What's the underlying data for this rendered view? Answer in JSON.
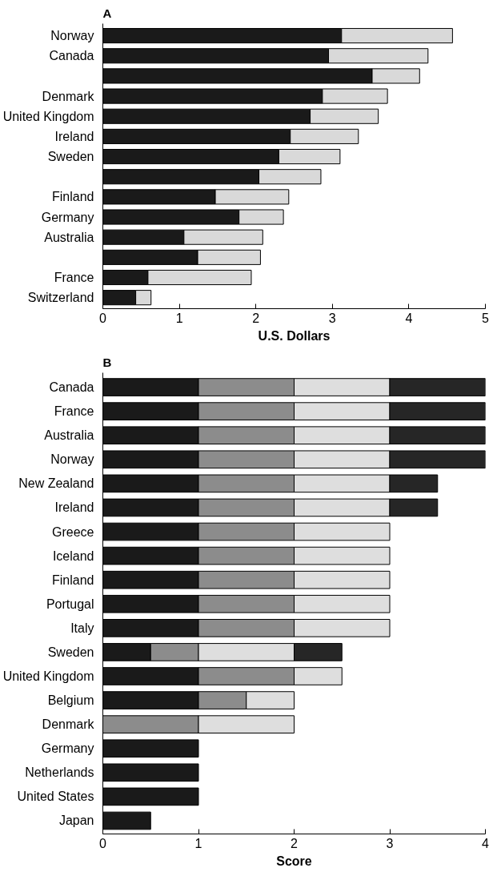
{
  "chart_data": [
    {
      "type": "bar",
      "title": "A",
      "xlabel": "U.S. Dollars",
      "orientation": "horizontal",
      "stacked": true,
      "categories": [
        "Norway",
        "Canada",
        null,
        "Denmark",
        "United Kingdom",
        "Ireland",
        "Sweden",
        null,
        "Finland",
        "Germany",
        "Australia",
        null,
        "France",
        "Switzerland"
      ],
      "series": [
        {
          "color": "#1a1a1a",
          "values": [
            3.12,
            2.95,
            3.52,
            2.87,
            2.71,
            2.45,
            2.3,
            2.04,
            1.47,
            1.78,
            1.06,
            1.24,
            0.59,
            0.43
          ]
        },
        {
          "color": "#d9d9d9",
          "values": [
            1.45,
            1.3,
            0.62,
            0.85,
            0.89,
            0.89,
            0.8,
            0.81,
            0.96,
            0.58,
            1.03,
            0.82,
            1.35,
            0.2
          ]
        }
      ],
      "xlim": [
        0,
        5
      ],
      "xticks": [
        0,
        1,
        2,
        3,
        4,
        5
      ]
    },
    {
      "type": "bar",
      "title": "B",
      "xlabel": "Score",
      "orientation": "horizontal",
      "stacked": true,
      "categories": [
        "Canada",
        "France",
        "Australia",
        "Norway",
        "New Zealand",
        "Ireland",
        "Greece",
        "Iceland",
        "Finland",
        "Portugal",
        "Italy",
        "Sweden",
        "United Kingdom",
        "Belgium",
        "Denmark",
        "Germany",
        "Netherlands",
        "United States",
        "Japan"
      ],
      "series": [
        {
          "color": "#1a1a1a",
          "values": [
            1,
            1,
            1,
            1,
            1,
            1,
            1,
            1,
            1,
            1,
            1,
            0.5,
            1,
            1,
            0,
            1,
            1,
            1,
            0.5
          ]
        },
        {
          "color": "#8c8c8c",
          "values": [
            1,
            1,
            1,
            1,
            1,
            1,
            1,
            1,
            1,
            1,
            1,
            0.5,
            1,
            0.5,
            1,
            0,
            0,
            0,
            0
          ]
        },
        {
          "color": "#dedede",
          "values": [
            1,
            1,
            1,
            1,
            1,
            1,
            1,
            1,
            1,
            1,
            1,
            1,
            0.5,
            0.5,
            1,
            0,
            0,
            0,
            0
          ]
        },
        {
          "color": "#262626",
          "values": [
            1,
            1,
            1,
            1,
            0.5,
            0.5,
            0,
            0,
            0,
            0,
            0,
            0.5,
            0,
            0,
            0,
            0,
            0,
            0,
            0
          ]
        }
      ],
      "xlim": [
        0,
        4
      ],
      "xticks": [
        0,
        1,
        2,
        3,
        4
      ]
    }
  ]
}
